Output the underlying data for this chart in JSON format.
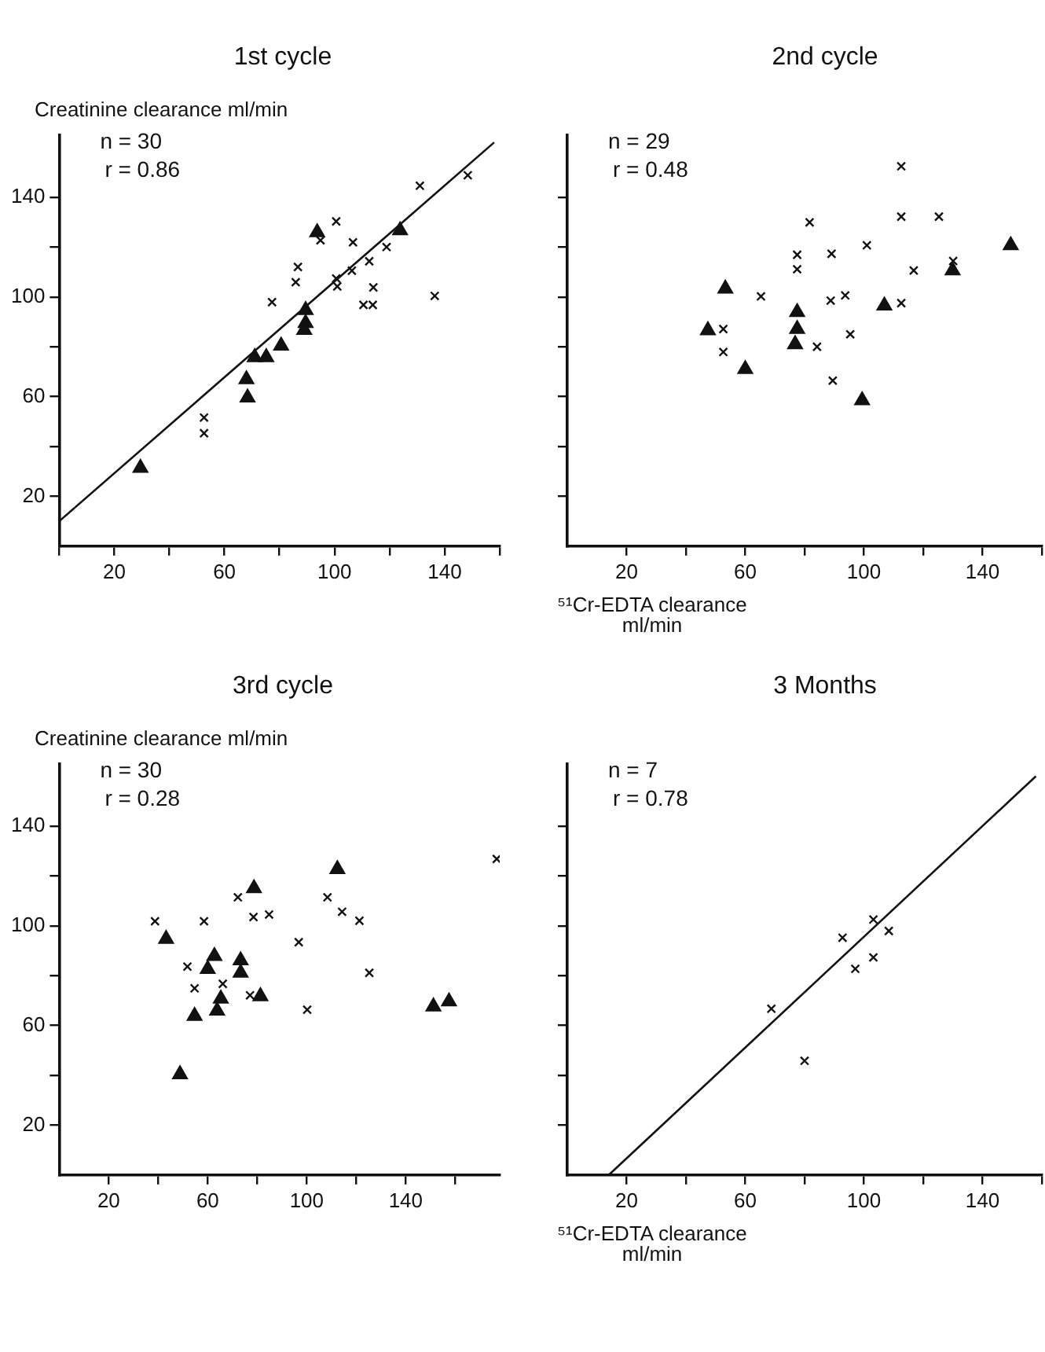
{
  "chart_data": [
    {
      "type": "scatter",
      "title": "1st cycle",
      "ylabel": "Creatinine clearance ml/min",
      "annotations": [
        "n = 30",
        "r = 0.86"
      ],
      "xlim": [
        0,
        160
      ],
      "ylim": [
        0,
        165
      ],
      "grid": false,
      "legend": false,
      "xticks": [
        {
          "value": 0,
          "label": null
        },
        20,
        {
          "value": 40,
          "label": null
        },
        60,
        {
          "value": 80,
          "label": null
        },
        100,
        {
          "value": 120,
          "label": null
        },
        140,
        {
          "value": 160,
          "label": null
        }
      ],
      "yticks": [
        20,
        {
          "value": 40,
          "label": null
        },
        60,
        {
          "value": 80,
          "label": null
        },
        100,
        {
          "value": 120,
          "label": null
        },
        140
      ],
      "series": [
        {
          "type": "scatter",
          "marker": "cross",
          "color": "#111111",
          "x": [
            148.4,
            131,
            100.6,
            106.7,
            118.9,
            94.9,
            112.6,
            106.3,
            100.6,
            101,
            86.7,
            85.9,
            77.3,
            114.1,
            110.5,
            113.9,
            136.4,
            52.6,
            52.6
          ],
          "values": [
            148.8,
            144.6,
            130.3,
            121.9,
            120,
            122.7,
            114.3,
            110.5,
            107.4,
            104.2,
            112,
            105.9,
            97.9,
            103.8,
            96.8,
            96.8,
            100.4,
            51.6,
            45.3
          ]
        },
        {
          "type": "scatter",
          "marker": "triangle",
          "color": "#111111",
          "x": [
            93.7,
            123.8,
            89.5,
            89.5,
            89,
            80.6,
            71,
            75.2,
            68,
            68.4,
            29.5
          ],
          "values": [
            125.9,
            126.7,
            94.7,
            89.5,
            86.7,
            80.4,
            75.8,
            75.8,
            66.9,
            59.6,
            31.4
          ]
        },
        {
          "type": "line",
          "marker": "none",
          "color": "#111111",
          "x": [
            0,
            158
          ],
          "values": [
            10,
            162
          ]
        }
      ]
    },
    {
      "type": "scatter",
      "title": "2nd cycle",
      "xlabel": "⁵¹Cr-EDTA clearance ml/min",
      "annotations": [
        "n = 29",
        "r = 0.48"
      ],
      "xlim": [
        0,
        160
      ],
      "ylim": [
        0,
        165
      ],
      "grid": false,
      "legend": false,
      "tick_labels": "x",
      "xticks": [
        20,
        {
          "value": 40,
          "label": null
        },
        60,
        {
          "value": 80,
          "label": null
        },
        100,
        {
          "value": 120,
          "label": null
        },
        140,
        {
          "value": 160,
          "label": null
        }
      ],
      "yticks": [
        {
          "value": 20,
          "label": null
        },
        {
          "value": 40,
          "label": null
        },
        {
          "value": 60,
          "label": null
        },
        {
          "value": 80,
          "label": null
        },
        {
          "value": 100,
          "label": null
        },
        {
          "value": 120,
          "label": null
        },
        {
          "value": 140,
          "label": null
        }
      ],
      "series": [
        {
          "type": "scatter",
          "marker": "cross",
          "color": "#111111",
          "x": [
            112.6,
            112.6,
            125.3,
            81.7,
            101,
            77.5,
            89.1,
            77.5,
            116.8,
            130.1,
            65.3,
            88.8,
            93.7,
            112.6,
            52.6,
            95.4,
            52.6,
            84.2,
            89.5
          ],
          "values": [
            152.4,
            132.2,
            132.2,
            129.9,
            120.7,
            116.9,
            117.3,
            111.1,
            110.6,
            114.4,
            100.2,
            98.5,
            100.6,
            97.5,
            87.1,
            85,
            77.9,
            80,
            66.4
          ]
        },
        {
          "type": "scatter",
          "marker": "triangle",
          "color": "#111111",
          "x": [
            149.5,
            129.9,
            53.3,
            106.9,
            77.5,
            47.4,
            77.5,
            76.8,
            60,
            99.4
          ],
          "values": [
            120.7,
            110.6,
            103.3,
            96.5,
            93.9,
            86.6,
            87.1,
            81,
            71,
            58.5
          ]
        }
      ]
    },
    {
      "type": "scatter",
      "title": "3rd cycle",
      "ylabel": "Creatinine clearance ml/min",
      "annotations": [
        "n = 30",
        "r = 0.28"
      ],
      "xlim": [
        0,
        178
      ],
      "ylim": [
        0,
        165
      ],
      "grid": false,
      "legend": false,
      "xticks": [
        20,
        {
          "value": 40,
          "label": null
        },
        60,
        {
          "value": 80,
          "label": null
        },
        100,
        {
          "value": 120,
          "label": null
        },
        140,
        {
          "value": 160,
          "label": null
        }
      ],
      "yticks": [
        20,
        {
          "value": 40,
          "label": null
        },
        60,
        {
          "value": 80,
          "label": null
        },
        100,
        {
          "value": 120,
          "label": null
        },
        140
      ],
      "series": [
        {
          "type": "scatter",
          "marker": "cross",
          "color": "#111111",
          "x": [
            176.8,
            38.7,
            58.5,
            72.2,
            78.5,
            84.8,
            108.4,
            114.3,
            121.3,
            96.8,
            51.8,
            125.3,
            54.7,
            66.1,
            77.1,
            100.2
          ],
          "values": [
            126.8,
            101.8,
            101.8,
            111.4,
            103.5,
            104.5,
            111.4,
            105.6,
            102,
            93.4,
            83.6,
            81.1,
            74.9,
            76.7,
            72.1,
            66.3
          ]
        },
        {
          "type": "scatter",
          "marker": "triangle",
          "color": "#111111",
          "x": [
            112.4,
            78.7,
            43.2,
            62.7,
            60,
            73.3,
            73.3,
            81.3,
            65.3,
            63.8,
            54.7,
            151.2,
            157.5,
            48.8
          ],
          "values": [
            122.7,
            115,
            94.7,
            87.8,
            82.6,
            86.1,
            81.1,
            71.7,
            70.7,
            65.9,
            63.8,
            67.6,
            69.6,
            40.4
          ]
        }
      ]
    },
    {
      "type": "scatter",
      "title": "3 Months",
      "xlabel": "⁵¹Cr-EDTA clearance ml/min",
      "annotations": [
        "n = 7",
        "r = 0.78"
      ],
      "xlim": [
        0,
        160
      ],
      "ylim": [
        0,
        165
      ],
      "grid": false,
      "legend": false,
      "tick_labels": "x",
      "xticks": [
        20,
        {
          "value": 40,
          "label": null
        },
        60,
        {
          "value": 80,
          "label": null
        },
        100,
        {
          "value": 120,
          "label": null
        },
        140,
        {
          "value": 160,
          "label": null
        }
      ],
      "yticks": [
        {
          "value": 20,
          "label": null
        },
        {
          "value": 40,
          "label": null
        },
        {
          "value": 60,
          "label": null
        },
        {
          "value": 80,
          "label": null
        },
        {
          "value": 100,
          "label": null
        },
        {
          "value": 120,
          "label": null
        },
        {
          "value": 140,
          "label": null
        }
      ],
      "series": [
        {
          "type": "scatter",
          "marker": "cross",
          "color": "#111111",
          "x": [
            103.2,
            108.4,
            92.8,
            103.2,
            97.1,
            68.8,
            80
          ],
          "values": [
            102.5,
            97.9,
            95.2,
            87.3,
            82.7,
            66.7,
            45.8
          ]
        },
        {
          "type": "line",
          "marker": "none",
          "color": "#111111",
          "x": [
            14,
            158
          ],
          "values": [
            0,
            160
          ]
        }
      ]
    }
  ]
}
